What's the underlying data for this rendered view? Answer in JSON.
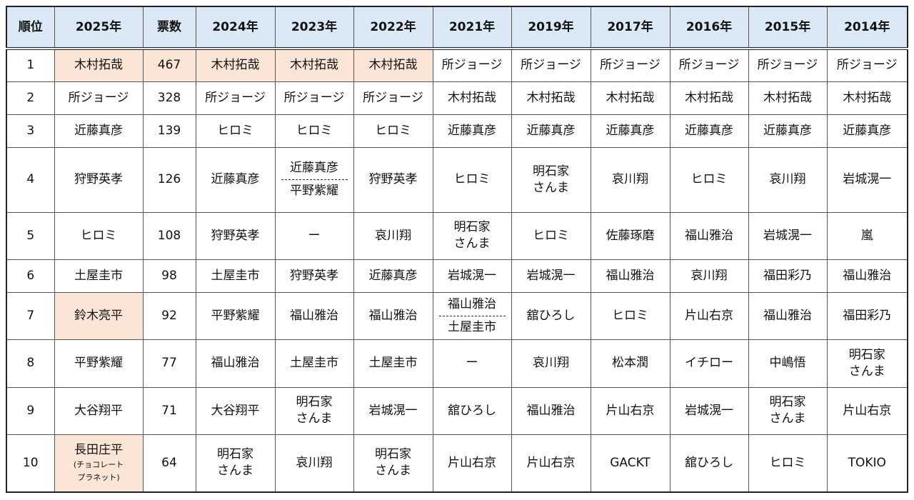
{
  "table": {
    "header": [
      "順位",
      "2025年",
      "票数",
      "2024年",
      "2023年",
      "2022年",
      "2021年",
      "2019年",
      "2017年",
      "2016年",
      "2015年",
      "2014年"
    ],
    "rows": [
      [
        1,
        "木村拓哉",
        467,
        "木村拓哉",
        "木村拓哉",
        "木村拓哉",
        "所ジョージ",
        "所ジョージ",
        "所ジョージ",
        "所ジョージ",
        "所ジョージ",
        "所ジョージ"
      ],
      [
        2,
        "所ジョージ",
        328,
        "所ジョージ",
        "所ジョージ",
        "所ジョージ",
        "木村拓哉",
        "木村拓哉",
        "木村拓哉",
        "木村拓哉",
        "木村拓哉",
        "木村拓哉"
      ],
      [
        3,
        "近藤真彦",
        139,
        "ヒロミ",
        "ヒロミ",
        "ヒロミ",
        "近藤真彦",
        "近藤真彦",
        "近藤真彦",
        "近藤真彦",
        "近藤真彦",
        "近藤真彦"
      ],
      [
        4,
        "狩野英孝",
        126,
        "近藤真彦",
        [
          "近藤真彦",
          "平野紫耀"
        ],
        "狩野英孝",
        "ヒロミ",
        "明石家\nさんま",
        "哀川翔",
        "ヒロミ",
        "哀川翔",
        "岩城滉一"
      ],
      [
        5,
        "ヒロミ",
        108,
        "狩野英孝",
        "ー",
        "哀川翔",
        "明石家\nさんま",
        "ヒロミ",
        "佐藤琢磨",
        "福山雅治",
        "岩城滉一",
        "嵐"
      ],
      [
        6,
        "土屋圭市",
        98,
        "土屋圭市",
        "狩野英孝",
        "近藤真彦",
        "岩城滉一",
        "岩城滉一",
        "福山雅治",
        "哀川翔",
        "福田彩乃",
        "福山雅治"
      ],
      [
        7,
        "鈴木亮平",
        92,
        "平野紫耀",
        "福山雅治",
        "福山雅治",
        [
          "福山雅治",
          "土屋圭市"
        ],
        "舘ひろし",
        "ヒロミ",
        "片山右京",
        "福山雅治",
        "福田彩乃"
      ],
      [
        8,
        "平野紫耀",
        77,
        "福山雅治",
        "土屋圭市",
        "土屋圭市",
        "ー",
        "哀川翔",
        "松本潤",
        "イチロー",
        "中嶋悟",
        "明石家\nさんま"
      ],
      [
        9,
        "大谷翔平",
        71,
        "大谷翔平",
        "明石家\nさんま",
        "岩城滉一",
        "舘ひろし",
        "福山雅治",
        "片山右京",
        "岩城滉一",
        "明石家\nさんま",
        "片山右京"
      ],
      [
        10,
        {
          "name": "長田庄平",
          "note": "(チョコレート\nプラネット)"
        },
        64,
        "明石家\nさんま",
        "哀川翔",
        "明石家\nさんま",
        "片山右京",
        "片山右京",
        "GACKT",
        "舘ひろし",
        "ヒロミ",
        "TOKIO"
      ]
    ]
  }
}
